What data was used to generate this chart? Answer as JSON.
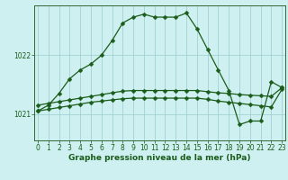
{
  "title": "Graphe pression niveau de la mer (hPa)",
  "bg_color": "#cff0f0",
  "grid_color": "#99cccc",
  "line_color": "#1a5c1a",
  "ylim": [
    1020.55,
    1022.85
  ],
  "xlim": [
    -0.3,
    23.3
  ],
  "yticks": [
    1021,
    1022
  ],
  "xticks": [
    0,
    1,
    2,
    3,
    4,
    5,
    6,
    7,
    8,
    9,
    10,
    11,
    12,
    13,
    14,
    15,
    16,
    17,
    18,
    19,
    20,
    21,
    22,
    23
  ],
  "flat1_x": [
    0,
    1,
    2,
    3,
    4,
    5,
    6,
    7,
    8,
    9,
    10,
    11,
    12,
    13,
    14,
    15,
    16,
    17,
    18,
    19,
    20,
    21,
    22,
    23
  ],
  "flat1_y": [
    1021.15,
    1021.18,
    1021.21,
    1021.24,
    1021.27,
    1021.3,
    1021.33,
    1021.36,
    1021.39,
    1021.4,
    1021.4,
    1021.4,
    1021.4,
    1021.4,
    1021.4,
    1021.4,
    1021.38,
    1021.36,
    1021.35,
    1021.33,
    1021.32,
    1021.31,
    1021.3,
    1021.45
  ],
  "flat2_x": [
    0,
    1,
    2,
    3,
    4,
    5,
    6,
    7,
    8,
    9,
    10,
    11,
    12,
    13,
    14,
    15,
    16,
    17,
    18,
    19,
    20,
    21,
    22,
    23
  ],
  "flat2_y": [
    1021.05,
    1021.08,
    1021.11,
    1021.14,
    1021.17,
    1021.2,
    1021.22,
    1021.24,
    1021.26,
    1021.27,
    1021.27,
    1021.27,
    1021.27,
    1021.27,
    1021.27,
    1021.27,
    1021.25,
    1021.22,
    1021.2,
    1021.18,
    1021.16,
    1021.14,
    1021.12,
    1021.42
  ],
  "main_x": [
    0,
    1,
    2,
    3,
    4,
    5,
    6,
    7,
    8,
    9,
    10,
    11,
    12,
    13,
    14,
    15,
    16,
    17,
    18,
    19,
    20,
    21,
    22,
    23
  ],
  "main_y": [
    1021.05,
    1021.15,
    1021.35,
    1021.6,
    1021.75,
    1021.85,
    1022.0,
    1022.25,
    1022.55,
    1022.65,
    1022.7,
    1022.65,
    1022.65,
    1022.65,
    1022.72,
    1022.45,
    1022.1,
    1021.75,
    1021.4,
    1020.82,
    1020.88,
    1020.88,
    1021.55,
    1021.45
  ],
  "marker_size": 2.5,
  "line_width": 0.9,
  "tick_fontsize": 5.5,
  "label_fontsize": 6.5
}
